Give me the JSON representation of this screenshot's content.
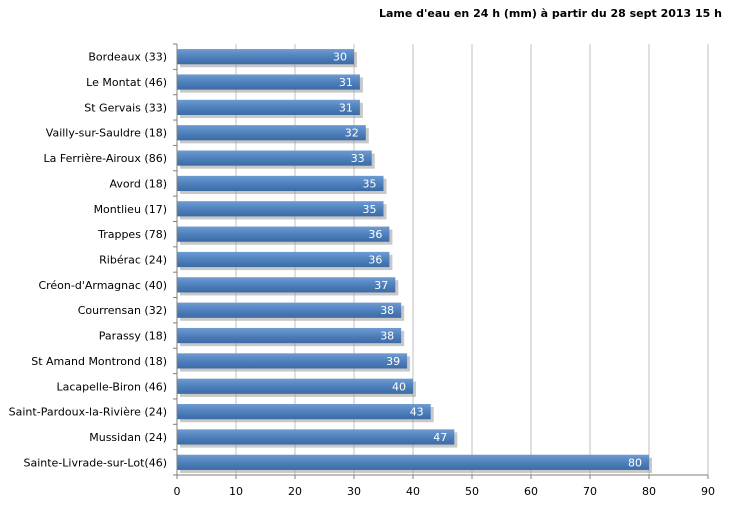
{
  "chart_data": {
    "type": "bar",
    "orientation": "horizontal",
    "title": "Lame d'eau  en 24 h (mm) à partir du 28 sept 2013 15 h",
    "categories": [
      "Bordeaux (33)",
      "Le Montat (46)",
      "St Gervais (33)",
      "Vailly-sur-Sauldre (18)",
      "La Ferrière-Airoux (86)",
      "Avord (18)",
      "Montlieu (17)",
      "Trappes (78)",
      "Ribérac (24)",
      "Créon-d'Armagnac (40)",
      "Courrensan (32)",
      "Parassy (18)",
      "St Amand Montrond (18)",
      "Lacapelle-Biron (46)",
      "Saint-Pardoux-la-Rivière (24)",
      "Mussidan (24)",
      "Sainte-Livrade-sur-Lot(46)"
    ],
    "values": [
      30,
      31,
      31,
      32,
      33,
      35,
      35,
      36,
      36,
      37,
      38,
      38,
      39,
      40,
      43,
      47,
      80
    ],
    "xlim": [
      0,
      90
    ],
    "xticks": [
      0,
      10,
      20,
      30,
      40,
      50,
      60,
      70,
      80,
      90
    ],
    "xlabel": "",
    "ylabel": "",
    "grid": "vertical",
    "legend": "none",
    "bar_color": "#4f81bd",
    "grid_color": "#c0c0c0",
    "axis_color": "#808080"
  }
}
